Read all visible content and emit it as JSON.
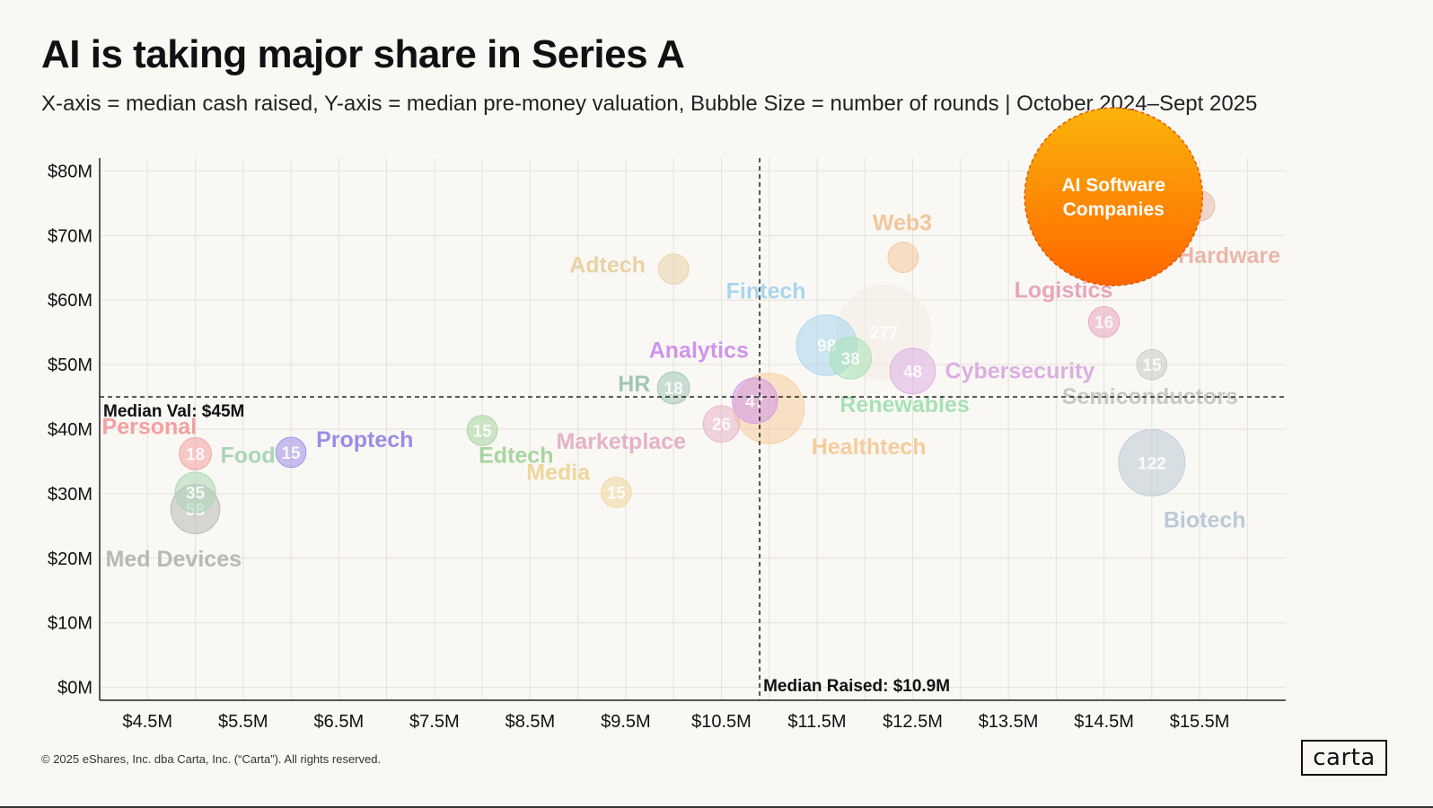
{
  "title": "AI is taking major share in Series A",
  "subtitle": "X-axis = median cash raised, Y-axis = median pre-money valuation, Bubble Size = number of rounds  |  October 2024–Sept 2025",
  "footer": "© 2025 eShares, Inc. dba Carta, Inc. (“Carta”). All rights reserved.",
  "logo": "carta",
  "chart_data": {
    "type": "scatter",
    "title": "AI is taking major share in Series A",
    "xlabel": "Median cash raised",
    "ylabel": "Median pre-money valuation",
    "xlim": [
      4.0,
      16.4
    ],
    "ylim": [
      -2,
      82
    ],
    "x_ticks": [
      4.5,
      5.5,
      6.5,
      7.5,
      8.5,
      9.5,
      10.5,
      11.5,
      12.5,
      13.5,
      14.5,
      15.5
    ],
    "x_tick_labels": [
      "$4.5M",
      "$5.5M",
      "$6.5M",
      "$7.5M",
      "$8.5M",
      "$9.5M",
      "$10.5M",
      "$11.5M",
      "$12.5M",
      "$13.5M",
      "$14.5M",
      "$15.5M"
    ],
    "y_ticks": [
      0,
      10,
      20,
      30,
      40,
      50,
      60,
      70,
      80
    ],
    "y_tick_labels": [
      "$0M",
      "$10M",
      "$20M",
      "$30M",
      "$40M",
      "$50M",
      "$60M",
      "$70M",
      "$80M"
    ],
    "median_x": 10.9,
    "median_y": 45,
    "median_x_label": "Median Raised: $10.9M",
    "median_y_label": "Median Val: $45M",
    "points": [
      {
        "name": "Med Devices",
        "x": 5.0,
        "y": 27.6,
        "rounds": 58,
        "count_label": "58",
        "color": "#b8b8b4"
      },
      {
        "name": "Food",
        "x": 5.0,
        "y": 30.2,
        "rounds": 35,
        "count_label": "35",
        "color": "#a9d6b4"
      },
      {
        "name": "Personal",
        "x": 5.0,
        "y": 36.2,
        "rounds": 18,
        "count_label": "18",
        "color": "#f2a0a0"
      },
      {
        "name": "Proptech",
        "x": 6.0,
        "y": 36.4,
        "rounds": 15,
        "count_label": "15",
        "color": "#9a8de6"
      },
      {
        "name": "Edtech",
        "x": 8.0,
        "y": 39.8,
        "rounds": 15,
        "count_label": "15",
        "color": "#a6d69e"
      },
      {
        "name": "Media",
        "x": 9.4,
        "y": 30.2,
        "rounds": 15,
        "count_label": "15",
        "color": "#eed79c"
      },
      {
        "name": "Adtech",
        "x": 10.0,
        "y": 64.8,
        "rounds": 15,
        "count_label": "",
        "color": "#e8d2a6"
      },
      {
        "name": "HR",
        "x": 10.0,
        "y": 46.4,
        "rounds": 18,
        "count_label": "18",
        "color": "#a0c6b8"
      },
      {
        "name": "Marketplace",
        "x": 10.5,
        "y": 40.8,
        "rounds": 26,
        "count_label": "26",
        "color": "#e6b2c6"
      },
      {
        "name": "Healthtech",
        "x": 11.0,
        "y": 43.2,
        "rounds": 140,
        "count_label": "",
        "color": "#f6cc9c"
      },
      {
        "name": "Analytics",
        "x": 10.85,
        "y": 44.4,
        "rounds": 47,
        "count_label": "47",
        "color": "#cf95ea"
      },
      {
        "name": "Fintech",
        "x": 11.6,
        "y": 53.0,
        "rounds": 98,
        "count_label": "98",
        "color": "#a8d6ee"
      },
      {
        "name": "Renewables",
        "x": 11.85,
        "y": 51.0,
        "rounds": 38,
        "count_label": "38",
        "color": "#a6e2b4"
      },
      {
        "name": "",
        "x": 12.2,
        "y": 55.0,
        "rounds": 277,
        "count_label": "277",
        "color": "#f2ece4"
      },
      {
        "name": "Web3",
        "x": 12.4,
        "y": 66.6,
        "rounds": 15,
        "count_label": "",
        "color": "#f2c69c"
      },
      {
        "name": "Cybersecurity",
        "x": 12.5,
        "y": 49.0,
        "rounds": 48,
        "count_label": "48",
        "color": "#dcaee2"
      },
      {
        "name": "Logistics",
        "x": 14.5,
        "y": 56.6,
        "rounds": 16,
        "count_label": "16",
        "color": "#e7a6bc"
      },
      {
        "name": "Hardware",
        "x": 15.5,
        "y": 74.6,
        "rounds": 15,
        "count_label": "",
        "color": "#e9b7a9"
      },
      {
        "name": "Semiconductors",
        "x": 15.0,
        "y": 50.0,
        "rounds": 15,
        "count_label": "15",
        "color": "#c8c8c4"
      },
      {
        "name": "Biotech",
        "x": 15.0,
        "y": 34.8,
        "rounds": 122,
        "count_label": "122",
        "color": "#bccad6"
      }
    ],
    "highlight": {
      "name": "AI Software Companies",
      "line1": "AI Software",
      "line2": "Companies",
      "x": 14.6,
      "y": 76.0,
      "color_top": "#fbb30a",
      "color_bottom": "#ff6600"
    }
  }
}
